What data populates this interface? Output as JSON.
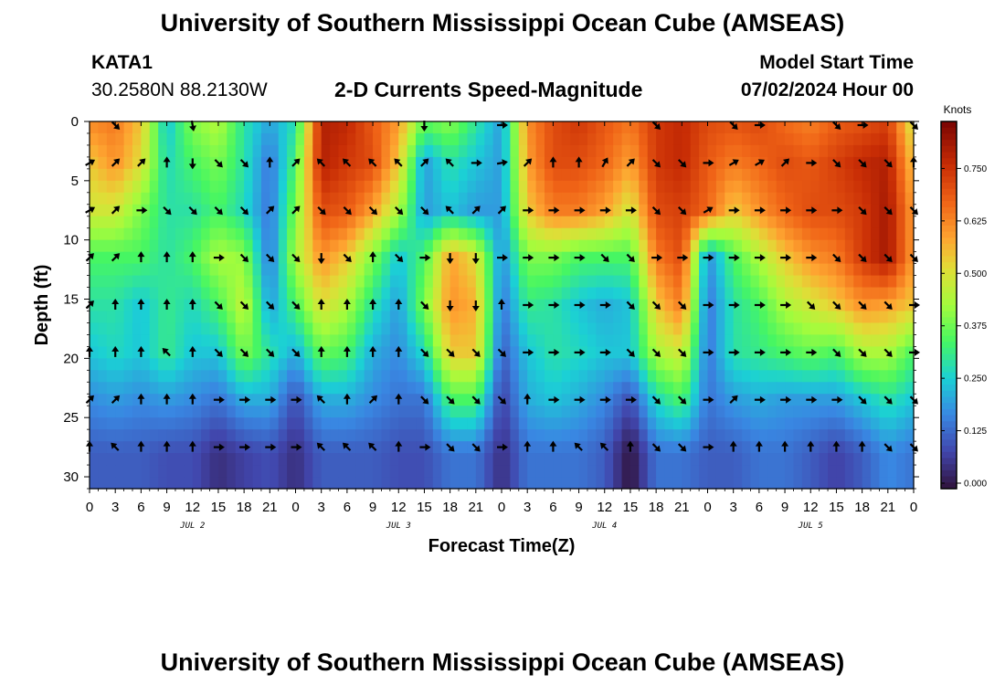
{
  "header": {
    "title": "University of Southern Mississippi Ocean Cube (AMSEAS)",
    "station_id": "KATA1",
    "coords": "30.2580N  88.2130W",
    "plot_title": "2-D Currents Speed-Magnitude",
    "model_start_label": "Model Start Time",
    "model_start_value": "07/02/2024 Hour 00"
  },
  "footer": {
    "title": "University of Southern Mississippi Ocean Cube (AMSEAS)"
  },
  "chart_data": {
    "type": "heatmap",
    "title": "2-D Currents Speed-Magnitude",
    "xlabel": "Forecast Time(Z)",
    "ylabel": "Depth (ft)",
    "x_tick_labels": [
      "0",
      "3",
      "6",
      "9",
      "12",
      "15",
      "18",
      "21",
      "0",
      "3",
      "6",
      "9",
      "12",
      "15",
      "18",
      "21",
      "0",
      "3",
      "6",
      "9",
      "12",
      "15",
      "18",
      "21",
      "0",
      "3",
      "6",
      "9",
      "12",
      "15",
      "18",
      "21",
      "0"
    ],
    "day_labels": [
      "JUL 2",
      "JUL 3",
      "JUL 4",
      "JUL 5"
    ],
    "y_ticks": [
      0,
      5,
      10,
      15,
      20,
      25,
      30
    ],
    "y_tick_labels": [
      "0",
      "5",
      "10",
      "15",
      "20",
      "25",
      "30"
    ],
    "ylim": [
      0,
      31
    ],
    "xlim_hours": [
      0,
      96
    ],
    "colorbar": {
      "title": "Knots",
      "ticks": [
        0.0,
        0.125,
        0.25,
        0.375,
        0.5,
        0.625,
        0.75
      ],
      "tick_labels": [
        "0.000",
        "0.125",
        "0.250",
        "0.375",
        "0.500",
        "0.625",
        "0.750"
      ],
      "range": [
        0.0,
        0.875
      ]
    },
    "speed_field": {
      "units": "knots",
      "depth_rows_ft": [
        0.5,
        3.5,
        7.5,
        11.5,
        15.5,
        19.5,
        23.5,
        28
      ],
      "time_columns_hours": [
        0,
        3,
        6,
        9,
        12,
        15,
        18,
        21,
        24,
        27,
        30,
        33,
        36,
        39,
        42,
        45,
        48,
        51,
        54,
        57,
        60,
        63,
        66,
        69,
        72,
        75,
        78,
        81,
        84,
        87,
        90,
        93,
        96
      ],
      "values": [
        [
          0.62,
          0.65,
          0.55,
          0.25,
          0.4,
          0.45,
          0.3,
          0.2,
          0.3,
          0.8,
          0.78,
          0.7,
          0.6,
          0.35,
          0.4,
          0.3,
          0.2,
          0.62,
          0.72,
          0.75,
          0.7,
          0.65,
          0.75,
          0.78,
          0.72,
          0.7,
          0.72,
          0.68,
          0.65,
          0.7,
          0.72,
          0.75,
          0.5
        ],
        [
          0.55,
          0.62,
          0.52,
          0.28,
          0.35,
          0.4,
          0.3,
          0.15,
          0.35,
          0.8,
          0.75,
          0.72,
          0.55,
          0.2,
          0.3,
          0.25,
          0.2,
          0.6,
          0.72,
          0.72,
          0.68,
          0.6,
          0.75,
          0.78,
          0.7,
          0.65,
          0.68,
          0.72,
          0.7,
          0.74,
          0.78,
          0.8,
          0.55
        ],
        [
          0.5,
          0.5,
          0.4,
          0.3,
          0.3,
          0.35,
          0.28,
          0.15,
          0.4,
          0.72,
          0.7,
          0.6,
          0.45,
          0.2,
          0.25,
          0.2,
          0.2,
          0.55,
          0.65,
          0.65,
          0.6,
          0.5,
          0.72,
          0.74,
          0.68,
          0.55,
          0.62,
          0.68,
          0.72,
          0.72,
          0.75,
          0.82,
          0.6
        ],
        [
          0.35,
          0.35,
          0.35,
          0.3,
          0.35,
          0.45,
          0.42,
          0.15,
          0.45,
          0.62,
          0.55,
          0.4,
          0.25,
          0.35,
          0.6,
          0.52,
          0.18,
          0.4,
          0.4,
          0.35,
          0.35,
          0.35,
          0.65,
          0.72,
          0.18,
          0.35,
          0.45,
          0.55,
          0.62,
          0.65,
          0.75,
          0.82,
          0.6
        ],
        [
          0.3,
          0.3,
          0.25,
          0.32,
          0.28,
          0.35,
          0.48,
          0.2,
          0.35,
          0.52,
          0.45,
          0.3,
          0.2,
          0.4,
          0.62,
          0.58,
          0.15,
          0.32,
          0.3,
          0.25,
          0.22,
          0.25,
          0.55,
          0.65,
          0.15,
          0.3,
          0.35,
          0.45,
          0.5,
          0.55,
          0.62,
          0.6,
          0.55
        ],
        [
          0.25,
          0.28,
          0.25,
          0.32,
          0.25,
          0.25,
          0.4,
          0.3,
          0.22,
          0.38,
          0.35,
          0.22,
          0.18,
          0.28,
          0.55,
          0.55,
          0.12,
          0.25,
          0.3,
          0.28,
          0.25,
          0.25,
          0.45,
          0.5,
          0.15,
          0.3,
          0.32,
          0.35,
          0.38,
          0.35,
          0.45,
          0.45,
          0.35
        ],
        [
          0.18,
          0.2,
          0.18,
          0.2,
          0.18,
          0.15,
          0.22,
          0.22,
          0.1,
          0.22,
          0.22,
          0.18,
          0.15,
          0.15,
          0.35,
          0.35,
          0.08,
          0.22,
          0.25,
          0.22,
          0.18,
          0.1,
          0.28,
          0.35,
          0.15,
          0.2,
          0.22,
          0.2,
          0.2,
          0.2,
          0.25,
          0.3,
          0.25
        ],
        [
          0.12,
          0.12,
          0.12,
          0.1,
          0.1,
          0.05,
          0.08,
          0.1,
          0.05,
          0.12,
          0.12,
          0.12,
          0.1,
          0.1,
          0.15,
          0.15,
          0.05,
          0.15,
          0.15,
          0.15,
          0.12,
          0.0,
          0.15,
          0.15,
          0.12,
          0.12,
          0.15,
          0.15,
          0.12,
          0.08,
          0.12,
          0.18,
          0.15
        ]
      ]
    },
    "vector_field": {
      "depth_rows_ft": [
        0,
        3.5,
        7.5,
        11.5,
        15.5,
        19.5,
        23.5,
        27.5
      ],
      "direction_deg_cw_from_up": [
        [
          null,
          135,
          null,
          null,
          170,
          null,
          null,
          null,
          null,
          null,
          null,
          null,
          null,
          180,
          null,
          null,
          90,
          null,
          null,
          null,
          null,
          null,
          135,
          null,
          null,
          135,
          90,
          null,
          null,
          135,
          90,
          null,
          135
        ],
        [
          60,
          45,
          45,
          0,
          180,
          135,
          135,
          0,
          45,
          315,
          315,
          315,
          315,
          45,
          315,
          90,
          80,
          45,
          0,
          0,
          30,
          45,
          135,
          135,
          90,
          60,
          60,
          45,
          90,
          135,
          135,
          135,
          0
        ],
        [
          60,
          45,
          90,
          135,
          135,
          135,
          135,
          45,
          45,
          135,
          135,
          135,
          135,
          135,
          315,
          45,
          45,
          90,
          90,
          90,
          90,
          90,
          135,
          135,
          60,
          90,
          90,
          90,
          90,
          90,
          135,
          135,
          135
        ],
        [
          45,
          45,
          0,
          0,
          0,
          90,
          135,
          135,
          135,
          180,
          135,
          0,
          135,
          90,
          180,
          180,
          90,
          90,
          90,
          90,
          135,
          135,
          90,
          90,
          90,
          90,
          90,
          90,
          90,
          135,
          135,
          135,
          135
        ],
        [
          45,
          0,
          0,
          0,
          0,
          135,
          135,
          135,
          135,
          0,
          0,
          0,
          0,
          135,
          180,
          180,
          0,
          90,
          90,
          90,
          90,
          135,
          135,
          135,
          90,
          90,
          90,
          90,
          135,
          135,
          135,
          135,
          90
        ],
        [
          0,
          0,
          0,
          315,
          0,
          135,
          135,
          135,
          135,
          0,
          0,
          0,
          0,
          135,
          135,
          135,
          135,
          90,
          90,
          90,
          90,
          135,
          135,
          135,
          90,
          90,
          90,
          90,
          90,
          135,
          135,
          135,
          90
        ],
        [
          45,
          45,
          0,
          0,
          0,
          90,
          90,
          90,
          90,
          315,
          0,
          45,
          0,
          135,
          135,
          135,
          135,
          0,
          90,
          90,
          90,
          90,
          135,
          135,
          90,
          45,
          90,
          90,
          90,
          90,
          135,
          135,
          135
        ],
        [
          0,
          315,
          0,
          0,
          0,
          90,
          90,
          90,
          90,
          315,
          315,
          315,
          0,
          90,
          135,
          135,
          90,
          0,
          0,
          315,
          315,
          0,
          135,
          135,
          90,
          0,
          0,
          0,
          0,
          0,
          0,
          135,
          135
        ]
      ]
    }
  }
}
